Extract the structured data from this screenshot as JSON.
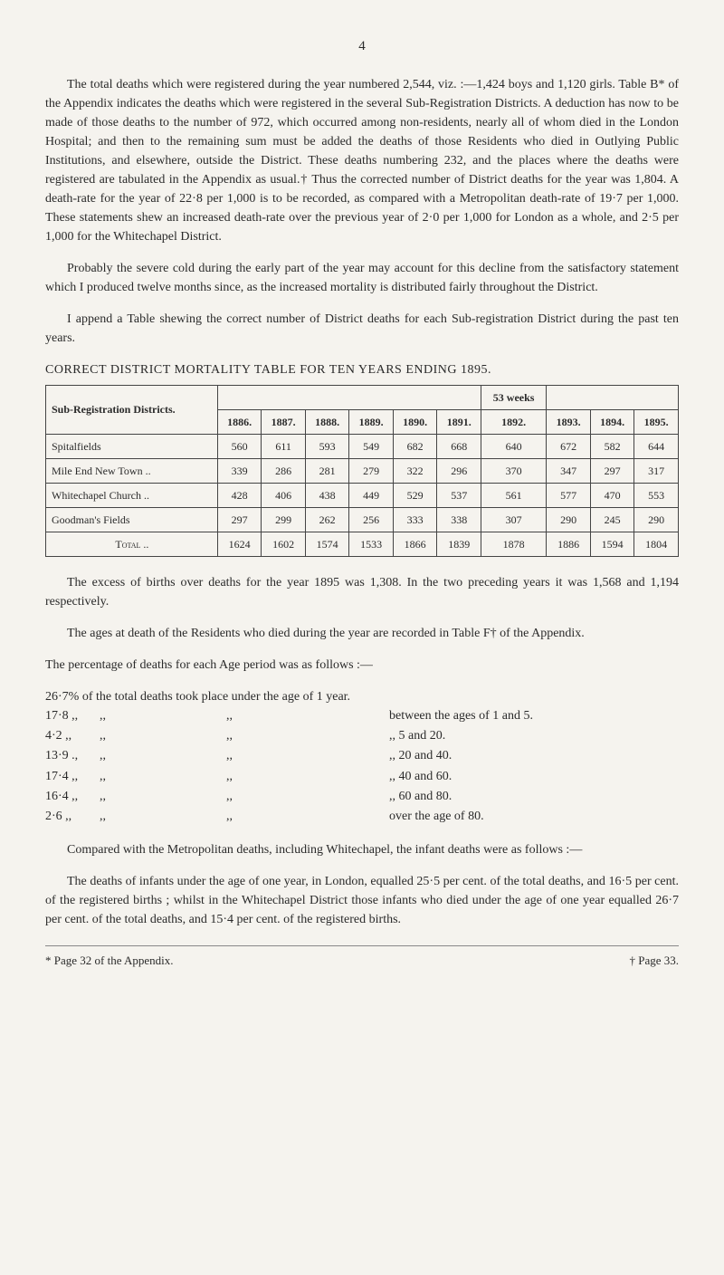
{
  "page_number": "4",
  "para1": "The total deaths which were registered during the year numbered 2,544, viz. :—1,424 boys and 1,120 girls. Table B* of the Appendix indicates the deaths which were registered in the several Sub-Registration Districts. A deduction has now to be made of those deaths to the number of 972, which occurred among non-residents, nearly all of whom died in the London Hospital; and then to the remaining sum must be added the deaths of those Residents who died in Outlying Public Institutions, and elsewhere, outside the District. These deaths numbering 232, and the places where the deaths were registered are tabulated in the Appendix as usual.† Thus the corrected number of District deaths for the year was 1,804. A death-rate for the year of 22·8 per 1,000 is to be recorded, as compared with a Metropolitan death-rate of 19·7 per 1,000. These statements shew an increased death-rate over the previous year of 2·0 per 1,000 for London as a whole, and 2·5 per 1,000 for the Whitechapel District.",
  "para2": "Probably the severe cold during the early part of the year may account for this decline from the satisfactory statement which I produced twelve months since, as the increased mortality is distributed fairly throughout the District.",
  "para3": "I append a Table shewing the correct number of District deaths for each Sub-registration District during the past ten years.",
  "table_title": "CORRECT DISTRICT MORTALITY TABLE FOR TEN YEARS ENDING 1895.",
  "table": {
    "header_left": "Sub-Registration Districts.",
    "weeks_note": "53 weeks",
    "years": [
      "1886.",
      "1887.",
      "1888.",
      "1889.",
      "1890.",
      "1891.",
      "1892.",
      "1893.",
      "1894.",
      "1895."
    ],
    "rows": [
      {
        "name": "Spitalfields",
        "vals": [
          "560",
          "611",
          "593",
          "549",
          "682",
          "668",
          "640",
          "672",
          "582",
          "644"
        ]
      },
      {
        "name": "Mile End New Town ..",
        "vals": [
          "339",
          "286",
          "281",
          "279",
          "322",
          "296",
          "370",
          "347",
          "297",
          "317"
        ]
      },
      {
        "name": "Whitechapel Church ..",
        "vals": [
          "428",
          "406",
          "438",
          "449",
          "529",
          "537",
          "561",
          "577",
          "470",
          "553"
        ]
      },
      {
        "name": "Goodman's Fields",
        "vals": [
          "297",
          "299",
          "262",
          "256",
          "333",
          "338",
          "307",
          "290",
          "245",
          "290"
        ]
      }
    ],
    "total_label": "Total ..",
    "total_vals": [
      "1624",
      "1602",
      "1574",
      "1533",
      "1866",
      "1839",
      "1878",
      "1886",
      "1594",
      "1804"
    ]
  },
  "para4": "The excess of births over deaths for the year 1895 was 1,308. In the two preceding years it was 1,568 and 1,194 respectively.",
  "para5": "The ages at death of the Residents who died during the year are recorded in Table F† of the Appendix.",
  "pct_intro": "The percentage of deaths for each Age period was as follows :—",
  "pct_line1": "26·7% of the total deaths took place under the age of 1 year.",
  "pct_rows": [
    {
      "l": "17·8 ,,",
      "m1": ",,",
      "m2": ",,",
      "r": "between the ages of 1 and 5."
    },
    {
      "l": "4·2 ,,",
      "m1": ",,",
      "m2": ",,",
      "r": ",, 5 and 20."
    },
    {
      "l": "13·9 .,",
      "m1": ",,",
      "m2": ",,",
      "r": ",, 20 and 40."
    },
    {
      "l": "17·4 ,,",
      "m1": ",,",
      "m2": ",,",
      "r": ",, 40 and 60."
    },
    {
      "l": "16·4 ,,",
      "m1": ",,",
      "m2": ",,",
      "r": ",, 60 and 80."
    },
    {
      "l": "2·6 ,,",
      "m1": ",,",
      "m2": ",,",
      "r": "over the age of 80."
    }
  ],
  "para6": "Compared with the Metropolitan deaths, including Whitechapel, the infant deaths were as follows :—",
  "para7": "The deaths of infants under the age of one year, in London, equalled 25·5 per cent. of the total deaths, and 16·5 per cent. of the registered births ; whilst in the Whitechapel District those infants who died under the age of one year equalled 26·7 per cent. of the total deaths, and 15·4 per cent. of the registered births.",
  "footnote_left": "* Page 32 of the Appendix.",
  "footnote_right": "† Page 33."
}
